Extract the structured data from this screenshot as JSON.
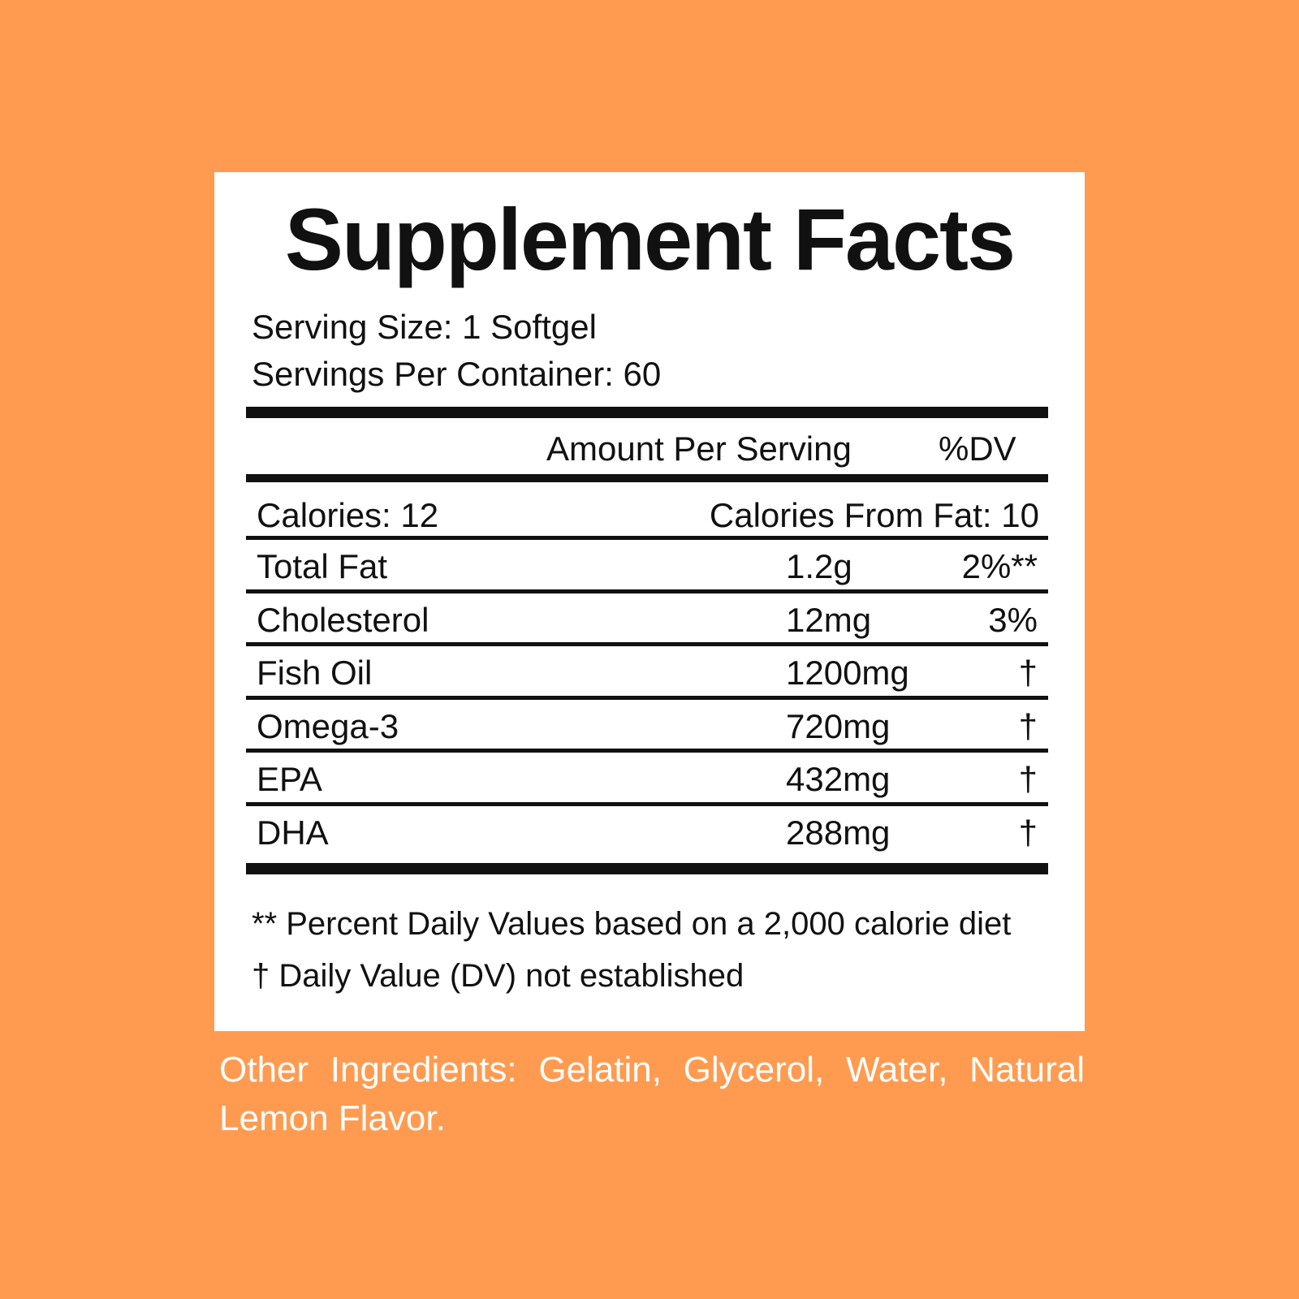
{
  "title": "Supplement Facts",
  "serving_size": "Serving Size: 1 Softgel",
  "servings_per_container": "Servings Per Container: 60",
  "header": {
    "amount": "Amount Per Serving",
    "dv": "%DV"
  },
  "calories": {
    "left": "Calories: 12",
    "right": "Calories From Fat: 10"
  },
  "rows": [
    {
      "name": "Total Fat",
      "amount": "1.2g",
      "dv": "2%**"
    },
    {
      "name": "Cholesterol",
      "amount": "12mg",
      "dv": "3%"
    },
    {
      "name": "Fish Oil",
      "amount": "1200mg",
      "dv": "†"
    },
    {
      "name": "Omega-3",
      "amount": "720mg",
      "dv": "†"
    },
    {
      "name": "EPA",
      "amount": "432mg",
      "dv": "†"
    },
    {
      "name": "DHA",
      "amount": "288mg",
      "dv": "†"
    }
  ],
  "footnotes": [
    "** Percent Daily Values based on a 2,000 calorie diet",
    "† Daily Value (DV) not established"
  ],
  "other_ingredients": "Other Ingredients: Gelatin, Glycerol, Water, Natural Lemon Flavor."
}
